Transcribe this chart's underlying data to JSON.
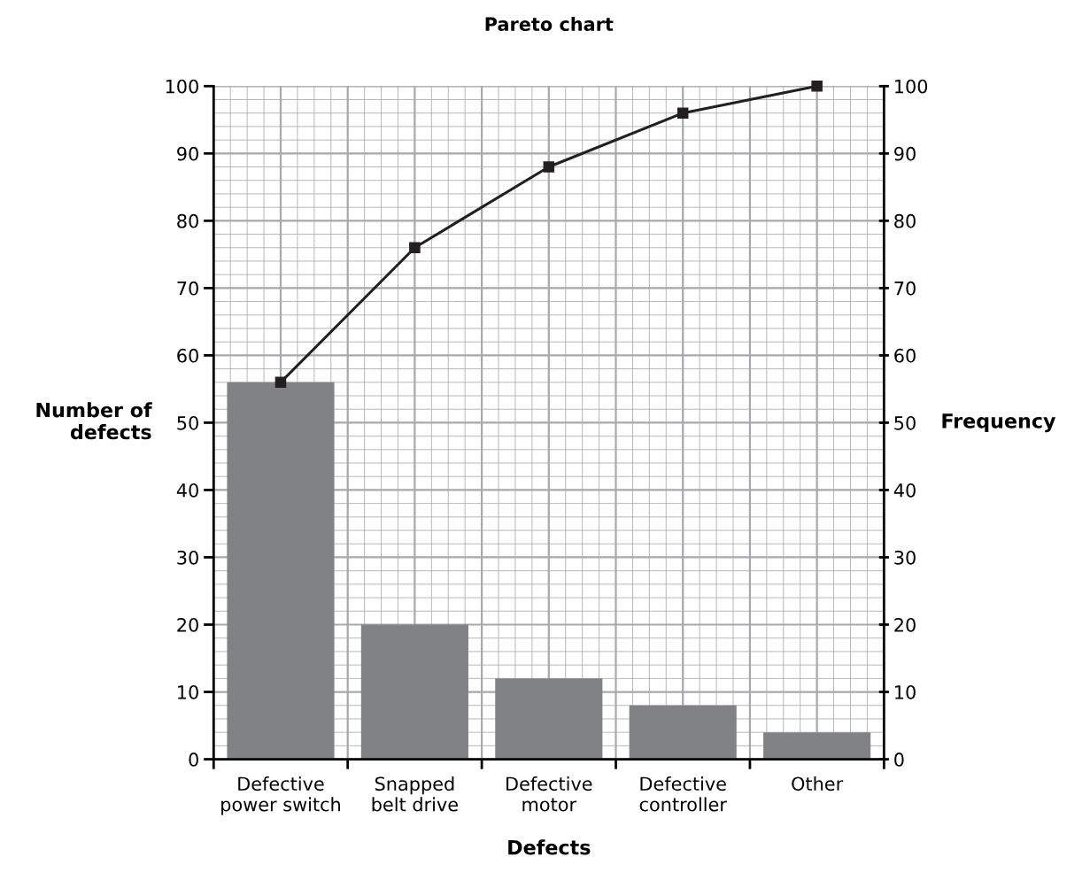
{
  "chart_data": {
    "type": "bar",
    "title": "Pareto chart",
    "xlabel": "Defects",
    "ylabel": "Number of\ndefects",
    "y2label": "Frequency",
    "categories": [
      "Defective\npower switch",
      "Snapped\nbelt drive",
      "Defective\nmotor",
      "Defective\ncontroller",
      "Other"
    ],
    "series": [
      {
        "color": "#808285",
        "values": [
          56,
          20,
          12,
          8,
          4
        ]
      },
      {
        "type": "line",
        "axis": "y2",
        "color": "#231f20",
        "marker": "square",
        "line_style": "solid",
        "values": [
          56,
          76,
          88,
          96,
          100
        ]
      }
    ],
    "ylim": [
      0,
      100
    ],
    "yticks": [
      0,
      10,
      20,
      30,
      40,
      50,
      60,
      70,
      80,
      90,
      100
    ],
    "y2lim": [
      0,
      100
    ],
    "y2ticks": [
      0,
      10,
      20,
      30,
      40,
      50,
      60,
      70,
      80,
      90,
      100
    ],
    "grid": true,
    "legend": false
  }
}
